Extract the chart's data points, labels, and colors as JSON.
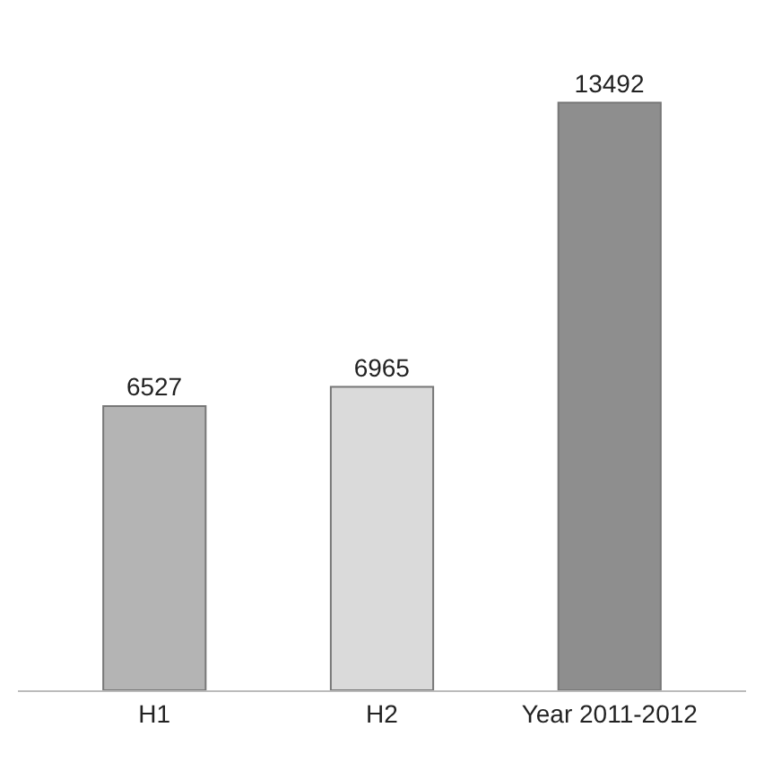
{
  "chart_data": {
    "type": "bar",
    "categories": [
      "H1",
      "H2",
      "Year 2011-2012"
    ],
    "values": [
      6527,
      6965,
      13492
    ],
    "colors": [
      "#b4b4b4",
      "#dadada",
      "#8e8e8e"
    ],
    "data_labels": true
  }
}
